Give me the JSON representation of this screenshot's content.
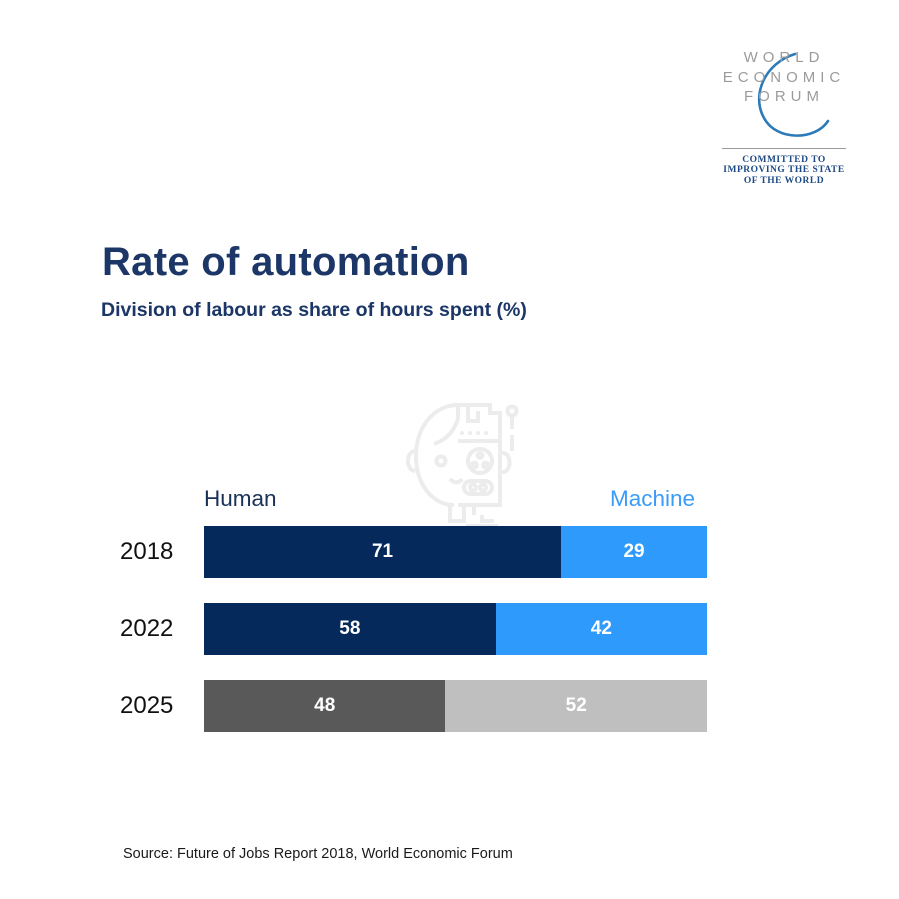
{
  "logo": {
    "lines": [
      "WORLD",
      "ECONOMIC",
      "FORUM"
    ],
    "tagline": [
      "COMMITTED TO",
      "IMPROVING THE STATE",
      "OF THE WORLD"
    ],
    "text_color": "#9b9b9b",
    "arc_color": "#2b7ab9",
    "tagline_color": "#1e4a85"
  },
  "header": {
    "title": "Rate of automation",
    "subtitle": "Division of labour as share of hours spent (%)",
    "title_color": "#1b3667"
  },
  "watermark": {
    "icon": "robot-human-head-icon",
    "color": "#ececec"
  },
  "chart_data": {
    "type": "bar",
    "variant": "horizontal-stacked",
    "title": "Rate of automation",
    "subtitle": "Division of labour as share of hours spent (%)",
    "categories": [
      "2018",
      "2022",
      "2025"
    ],
    "series": [
      {
        "name": "Human",
        "values": [
          71,
          58,
          48
        ],
        "colors": [
          "#05295a",
          "#05295a",
          "#595959"
        ],
        "label_color": "#1a3157"
      },
      {
        "name": "Machine",
        "values": [
          29,
          42,
          52
        ],
        "colors": [
          "#2e9bfc",
          "#2e9bfc",
          "#bfbfbf"
        ],
        "label_color": "#3b9bf9"
      }
    ],
    "xlim": [
      0,
      100
    ],
    "value_label_color": "#ffffff",
    "legend_position": "above-bar-ends",
    "grid": false
  },
  "source": {
    "text": "Source: Future of Jobs Report 2018, World Economic Forum"
  }
}
